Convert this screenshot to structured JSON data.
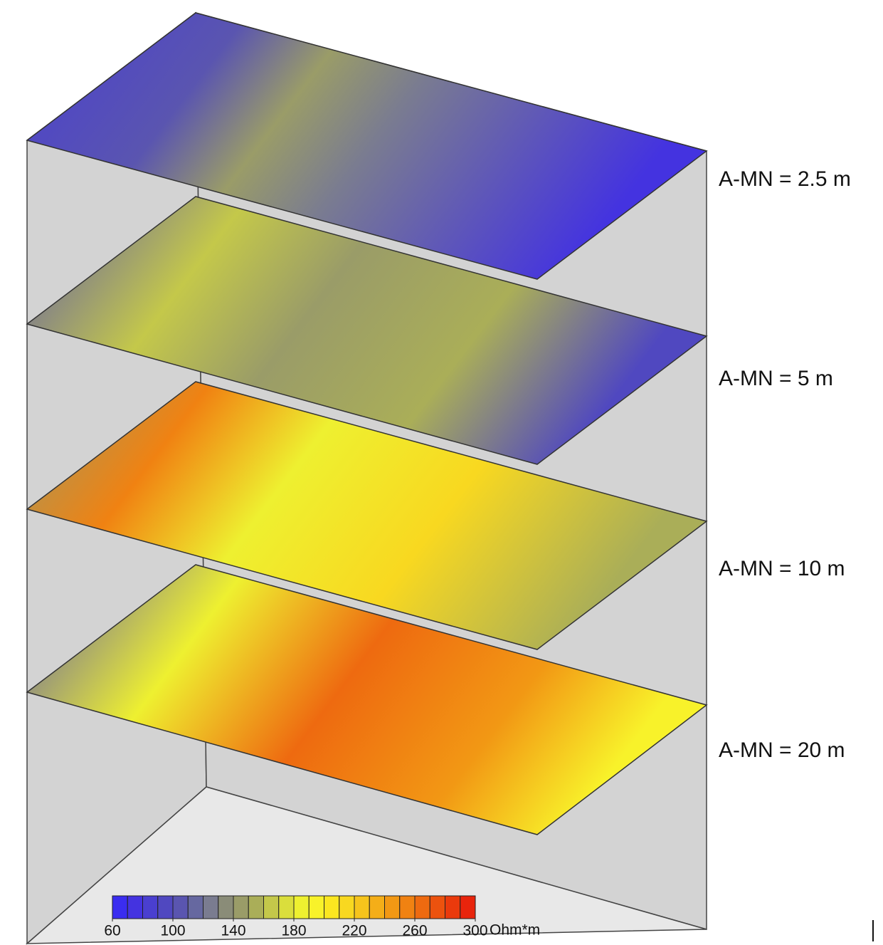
{
  "layers": [
    {
      "label": "A-MN = 2.5 m"
    },
    {
      "label": "A-MN = 5 m"
    },
    {
      "label": "A-MN = 10 m"
    },
    {
      "label": "A-MN = 20 m"
    }
  ],
  "colorbar": {
    "range": [
      60,
      300
    ],
    "ticks": [
      60,
      100,
      140,
      180,
      220,
      260,
      300
    ],
    "unit": "Ohm*m",
    "colors": [
      "#3a2df0",
      "#4433e0",
      "#4a3fd0",
      "#5048c0",
      "#5a55b0",
      "#6668a0",
      "#7a7c90",
      "#8a8c78",
      "#9a9c68",
      "#aaae58",
      "#c4c84a",
      "#dade3c",
      "#eef030",
      "#f8f22a",
      "#fbe620",
      "#f8d820",
      "#f6c41c",
      "#f4ae18",
      "#f29814",
      "#f08212",
      "#ee6a10",
      "#ec520e",
      "#ea3a0c",
      "#e8240c"
    ]
  }
}
